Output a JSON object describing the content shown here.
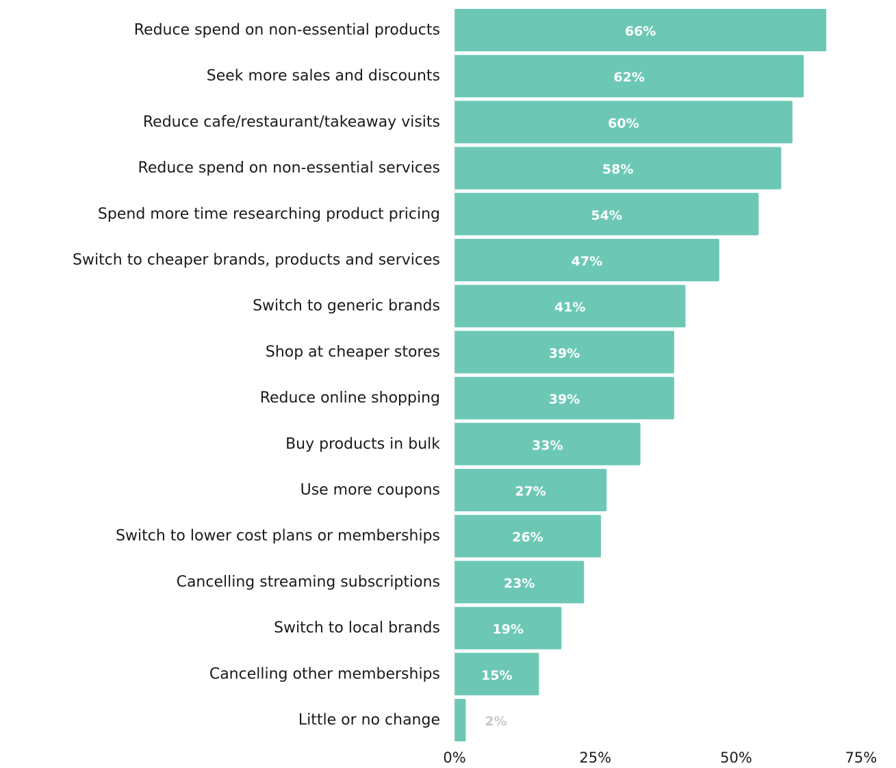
{
  "chart_data": {
    "type": "bar",
    "orientation": "horizontal",
    "categories": [
      "Reduce spend on non-essential products",
      "Seek more sales and discounts",
      "Reduce cafe/restaurant/takeaway visits",
      "Reduce spend on non-essential services",
      "Spend more time researching product pricing",
      "Switch to cheaper brands, products and services",
      "Switch to generic brands",
      "Shop at cheaper stores",
      "Reduce online shopping",
      "Buy products in bulk",
      "Use more coupons",
      "Switch to lower cost plans or memberships",
      "Cancelling streaming subscriptions",
      "Switch to local brands",
      "Cancelling other memberships",
      "Little or no change"
    ],
    "values": [
      66,
      62,
      60,
      58,
      54,
      47,
      41,
      39,
      39,
      33,
      27,
      26,
      23,
      19,
      15,
      2
    ],
    "value_labels": [
      "66%",
      "62%",
      "60%",
      "58%",
      "54%",
      "47%",
      "41%",
      "39%",
      "39%",
      "33%",
      "27%",
      "26%",
      "23%",
      "19%",
      "15%",
      "2%"
    ],
    "xlim": [
      0,
      75
    ],
    "x_ticks": [
      0,
      25,
      50,
      75
    ],
    "x_tick_labels": [
      "0%",
      "25%",
      "50%",
      "75%"
    ],
    "grid": false,
    "legend": "none",
    "colors": {
      "bar": "#6cc8b5",
      "value_label_inside": "#ffffff",
      "value_label_outside": "#c8c8c8",
      "axis_line": "#d9d9d9"
    }
  }
}
